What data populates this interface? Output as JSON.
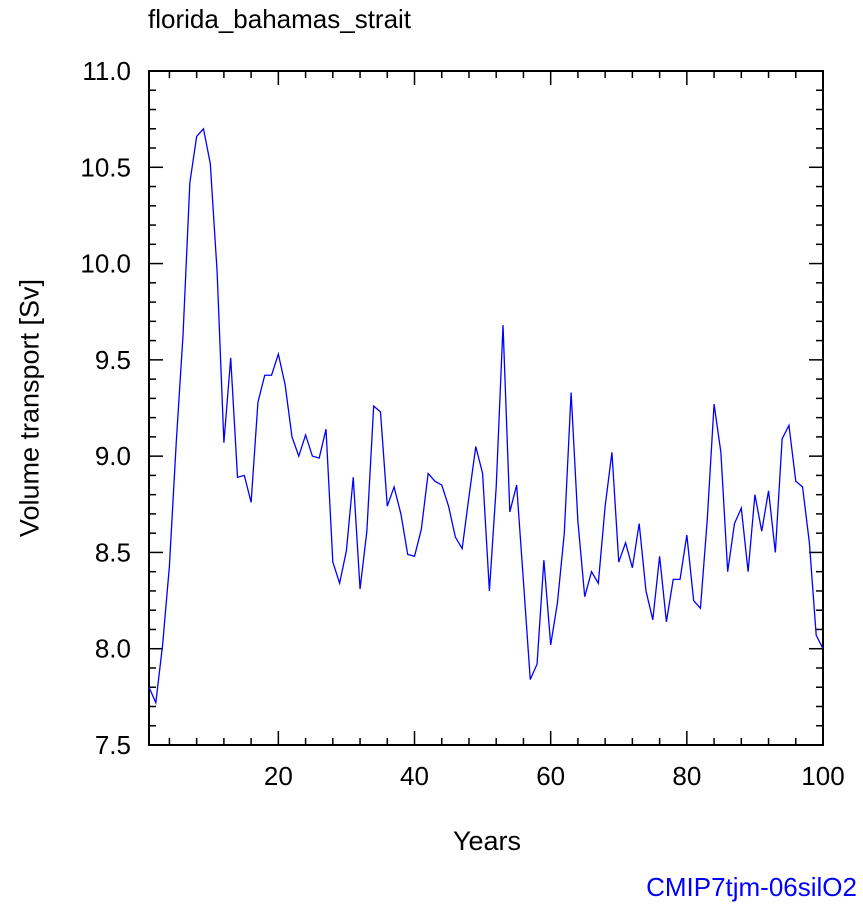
{
  "chart_data": {
    "type": "line",
    "title": "florida_bahamas_strait",
    "xlabel": "Years",
    "ylabel": "Volume transport [Sv]",
    "xlim": [
      1,
      100
    ],
    "ylim": [
      7.5,
      11.0
    ],
    "xticks": [
      20,
      40,
      60,
      80,
      100
    ],
    "yticks": [
      7.5,
      8.0,
      8.5,
      9.0,
      9.5,
      10.0,
      10.5,
      11.0
    ],
    "ytick_labels": [
      "7.5",
      "8.0",
      "8.5",
      "9.0",
      "9.5",
      "10.0",
      "10.5",
      "11.0"
    ],
    "grid": false,
    "series": [
      {
        "color": "#0000ff",
        "x": [
          1,
          2,
          3,
          4,
          5,
          6,
          7,
          8,
          9,
          10,
          11,
          12,
          13,
          14,
          15,
          16,
          17,
          18,
          19,
          20,
          21,
          22,
          23,
          24,
          25,
          26,
          27,
          28,
          29,
          30,
          31,
          32,
          33,
          34,
          35,
          36,
          37,
          38,
          39,
          40,
          41,
          42,
          43,
          44,
          45,
          46,
          47,
          48,
          49,
          50,
          51,
          52,
          53,
          54,
          55,
          56,
          57,
          58,
          59,
          60,
          61,
          62,
          63,
          64,
          65,
          66,
          67,
          68,
          69,
          70,
          71,
          72,
          73,
          74,
          75,
          76,
          77,
          78,
          79,
          80,
          81,
          82,
          83,
          84,
          85,
          86,
          87,
          88,
          89,
          90,
          91,
          92,
          93,
          94,
          95,
          96,
          97,
          98,
          99,
          100
        ],
        "values": [
          7.8,
          7.72,
          8.02,
          8.43,
          9.07,
          9.63,
          10.42,
          10.66,
          10.7,
          10.52,
          9.96,
          9.07,
          9.51,
          8.89,
          8.9,
          8.76,
          9.28,
          9.42,
          9.42,
          9.53,
          9.37,
          9.1,
          9.0,
          9.11,
          9.0,
          8.99,
          9.14,
          8.45,
          8.34,
          8.51,
          8.89,
          8.31,
          8.61,
          9.26,
          9.23,
          8.74,
          8.84,
          8.7,
          8.49,
          8.48,
          8.62,
          8.91,
          8.87,
          8.85,
          8.74,
          8.58,
          8.52,
          8.79,
          9.05,
          8.91,
          8.3,
          8.84,
          9.68,
          8.71,
          8.85,
          8.35,
          7.84,
          7.92,
          8.46,
          8.02,
          8.24,
          8.6,
          9.33,
          8.66,
          8.27,
          8.4,
          8.34,
          8.74,
          9.02,
          8.45,
          8.55,
          8.42,
          8.65,
          8.3,
          8.15,
          8.48,
          8.14,
          8.36,
          8.36,
          8.59,
          8.25,
          8.21,
          8.67,
          9.27,
          9.02,
          8.4,
          8.65,
          8.73,
          8.4,
          8.8,
          8.61,
          8.82,
          8.5,
          9.09,
          9.16,
          8.87,
          8.84,
          8.55,
          8.07,
          8.0
        ]
      }
    ]
  },
  "annotation": {
    "case_name": "CMIP7tjm-06silO2",
    "case_color": "#0000ff"
  }
}
